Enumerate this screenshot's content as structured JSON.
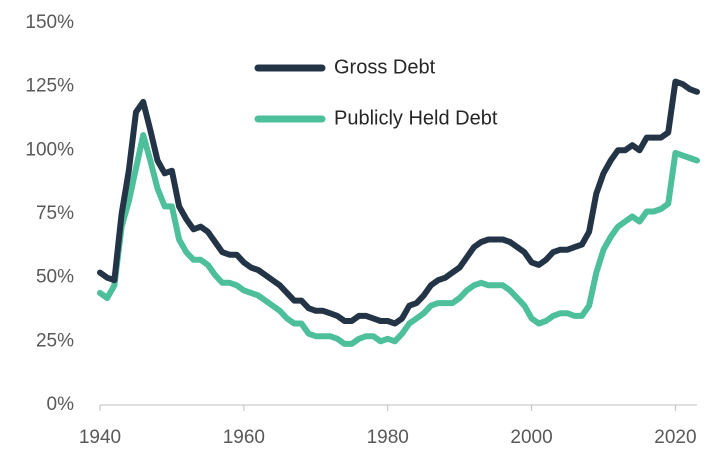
{
  "chart_data": {
    "type": "line",
    "x": [
      1940,
      1941,
      1942,
      1943,
      1944,
      1945,
      1946,
      1947,
      1948,
      1949,
      1950,
      1951,
      1952,
      1953,
      1954,
      1955,
      1956,
      1957,
      1958,
      1959,
      1960,
      1961,
      1962,
      1963,
      1964,
      1965,
      1966,
      1967,
      1968,
      1969,
      1970,
      1971,
      1972,
      1973,
      1974,
      1975,
      1976,
      1977,
      1978,
      1979,
      1980,
      1981,
      1982,
      1983,
      1984,
      1985,
      1986,
      1987,
      1988,
      1989,
      1990,
      1991,
      1992,
      1993,
      1994,
      1995,
      1996,
      1997,
      1998,
      1999,
      2000,
      2001,
      2002,
      2003,
      2004,
      2005,
      2006,
      2007,
      2008,
      2009,
      2010,
      2011,
      2012,
      2013,
      2014,
      2015,
      2016,
      2017,
      2018,
      2019,
      2020,
      2021,
      2022,
      2023
    ],
    "series": [
      {
        "name": "Gross Debt",
        "color": "#243447",
        "values": [
          52,
          50,
          49,
          75,
          92,
          115,
          119,
          108,
          96,
          91,
          92,
          78,
          73,
          69,
          70,
          68,
          64,
          60,
          59,
          59,
          56,
          54,
          53,
          51,
          49,
          47,
          44,
          41,
          41,
          38,
          37,
          37,
          36,
          35,
          33,
          33,
          35,
          35,
          34,
          33,
          33,
          32,
          34,
          39,
          40,
          43,
          47,
          49,
          50,
          52,
          54,
          58,
          62,
          64,
          65,
          65,
          65,
          64,
          62,
          60,
          56,
          55,
          57,
          60,
          61,
          61,
          62,
          63,
          68,
          83,
          91,
          96,
          100,
          100,
          102,
          100,
          105,
          105,
          105,
          107,
          127,
          126,
          124,
          123
        ]
      },
      {
        "name": "Publicly Held Debt",
        "color": "#4dbf9a",
        "values": [
          44,
          42,
          47,
          70,
          80,
          93,
          106,
          96,
          85,
          78,
          78,
          65,
          60,
          57,
          57,
          55,
          51,
          48,
          48,
          47,
          45,
          44,
          43,
          41,
          39,
          37,
          34,
          32,
          32,
          28,
          27,
          27,
          27,
          26,
          24,
          24,
          26,
          27,
          27,
          25,
          26,
          25,
          28,
          32,
          34,
          36,
          39,
          40,
          40,
          40,
          42,
          45,
          47,
          48,
          47,
          47,
          47,
          45,
          42,
          39,
          34,
          32,
          33,
          35,
          36,
          36,
          35,
          35,
          39,
          52,
          61,
          66,
          70,
          72,
          74,
          72,
          76,
          76,
          77,
          79,
          99,
          98,
          97,
          96
        ]
      }
    ],
    "xlim": [
      1940,
      2023
    ],
    "xticks": [
      1940,
      1960,
      1980,
      2000,
      2020
    ],
    "ylim": [
      0,
      150
    ],
    "yticks": [
      {
        "value": 0,
        "label": "0%"
      },
      {
        "value": 25,
        "label": "25%"
      },
      {
        "value": 50,
        "label": "50%"
      },
      {
        "value": 75,
        "label": "75%"
      },
      {
        "value": 100,
        "label": "100%"
      },
      {
        "value": 125,
        "label": "125%"
      },
      {
        "value": 150,
        "label": "150%"
      }
    ],
    "grid": false,
    "legend": "top"
  }
}
